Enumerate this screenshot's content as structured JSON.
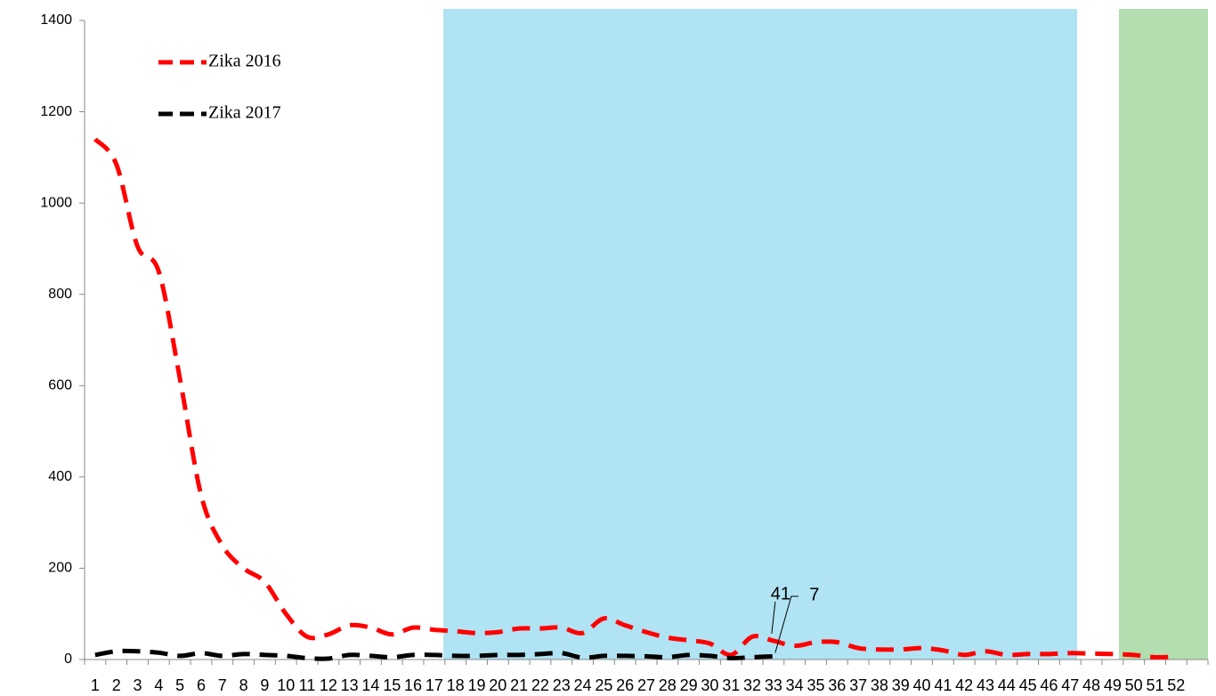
{
  "chart_data": {
    "type": "line",
    "categories": [
      "1",
      "2",
      "3",
      "4",
      "5",
      "6",
      "7",
      "8",
      "9",
      "10",
      "11",
      "12",
      "13",
      "14",
      "15",
      "16",
      "17",
      "18",
      "19",
      "20",
      "21",
      "22",
      "23",
      "24",
      "25",
      "26",
      "27",
      "28",
      "29",
      "30",
      "31",
      "32",
      "33",
      "34",
      "35",
      "36",
      "37",
      "38",
      "39",
      "40",
      "41",
      "42",
      "43",
      "44",
      "45",
      "46",
      "47",
      "48",
      "49",
      "50",
      "51",
      "52",
      null
    ],
    "series": [
      {
        "name": "Zika 2016",
        "color": "#ff0000",
        "values": [
          1140,
          1085,
          905,
          850,
          615,
          360,
          250,
          200,
          170,
          100,
          50,
          55,
          75,
          70,
          55,
          70,
          65,
          62,
          58,
          60,
          68,
          68,
          70,
          58,
          90,
          75,
          60,
          48,
          42,
          35,
          10,
          50,
          41,
          30,
          38,
          38,
          25,
          22,
          22,
          25,
          20,
          10,
          18,
          10,
          12,
          12,
          14,
          13,
          12,
          10,
          5,
          6,
          null
        ]
      },
      {
        "name": "Zika 2017",
        "color": "#000000",
        "values": [
          10,
          18,
          18,
          15,
          8,
          14,
          8,
          12,
          10,
          8,
          3,
          2,
          10,
          8,
          5,
          10,
          10,
          8,
          8,
          10,
          10,
          12,
          14,
          4,
          8,
          8,
          7,
          5,
          10,
          8,
          3,
          5,
          7,
          null,
          null,
          null,
          null,
          null,
          null,
          null,
          null,
          null,
          null,
          null,
          null,
          null,
          null,
          null,
          null,
          null,
          null,
          null,
          null
        ]
      }
    ],
    "ylim": [
      0,
      1400
    ],
    "yticks": [
      0,
      200,
      400,
      600,
      800,
      1000,
      1200,
      1400
    ],
    "grid": false,
    "legend": "top-left"
  }
}
